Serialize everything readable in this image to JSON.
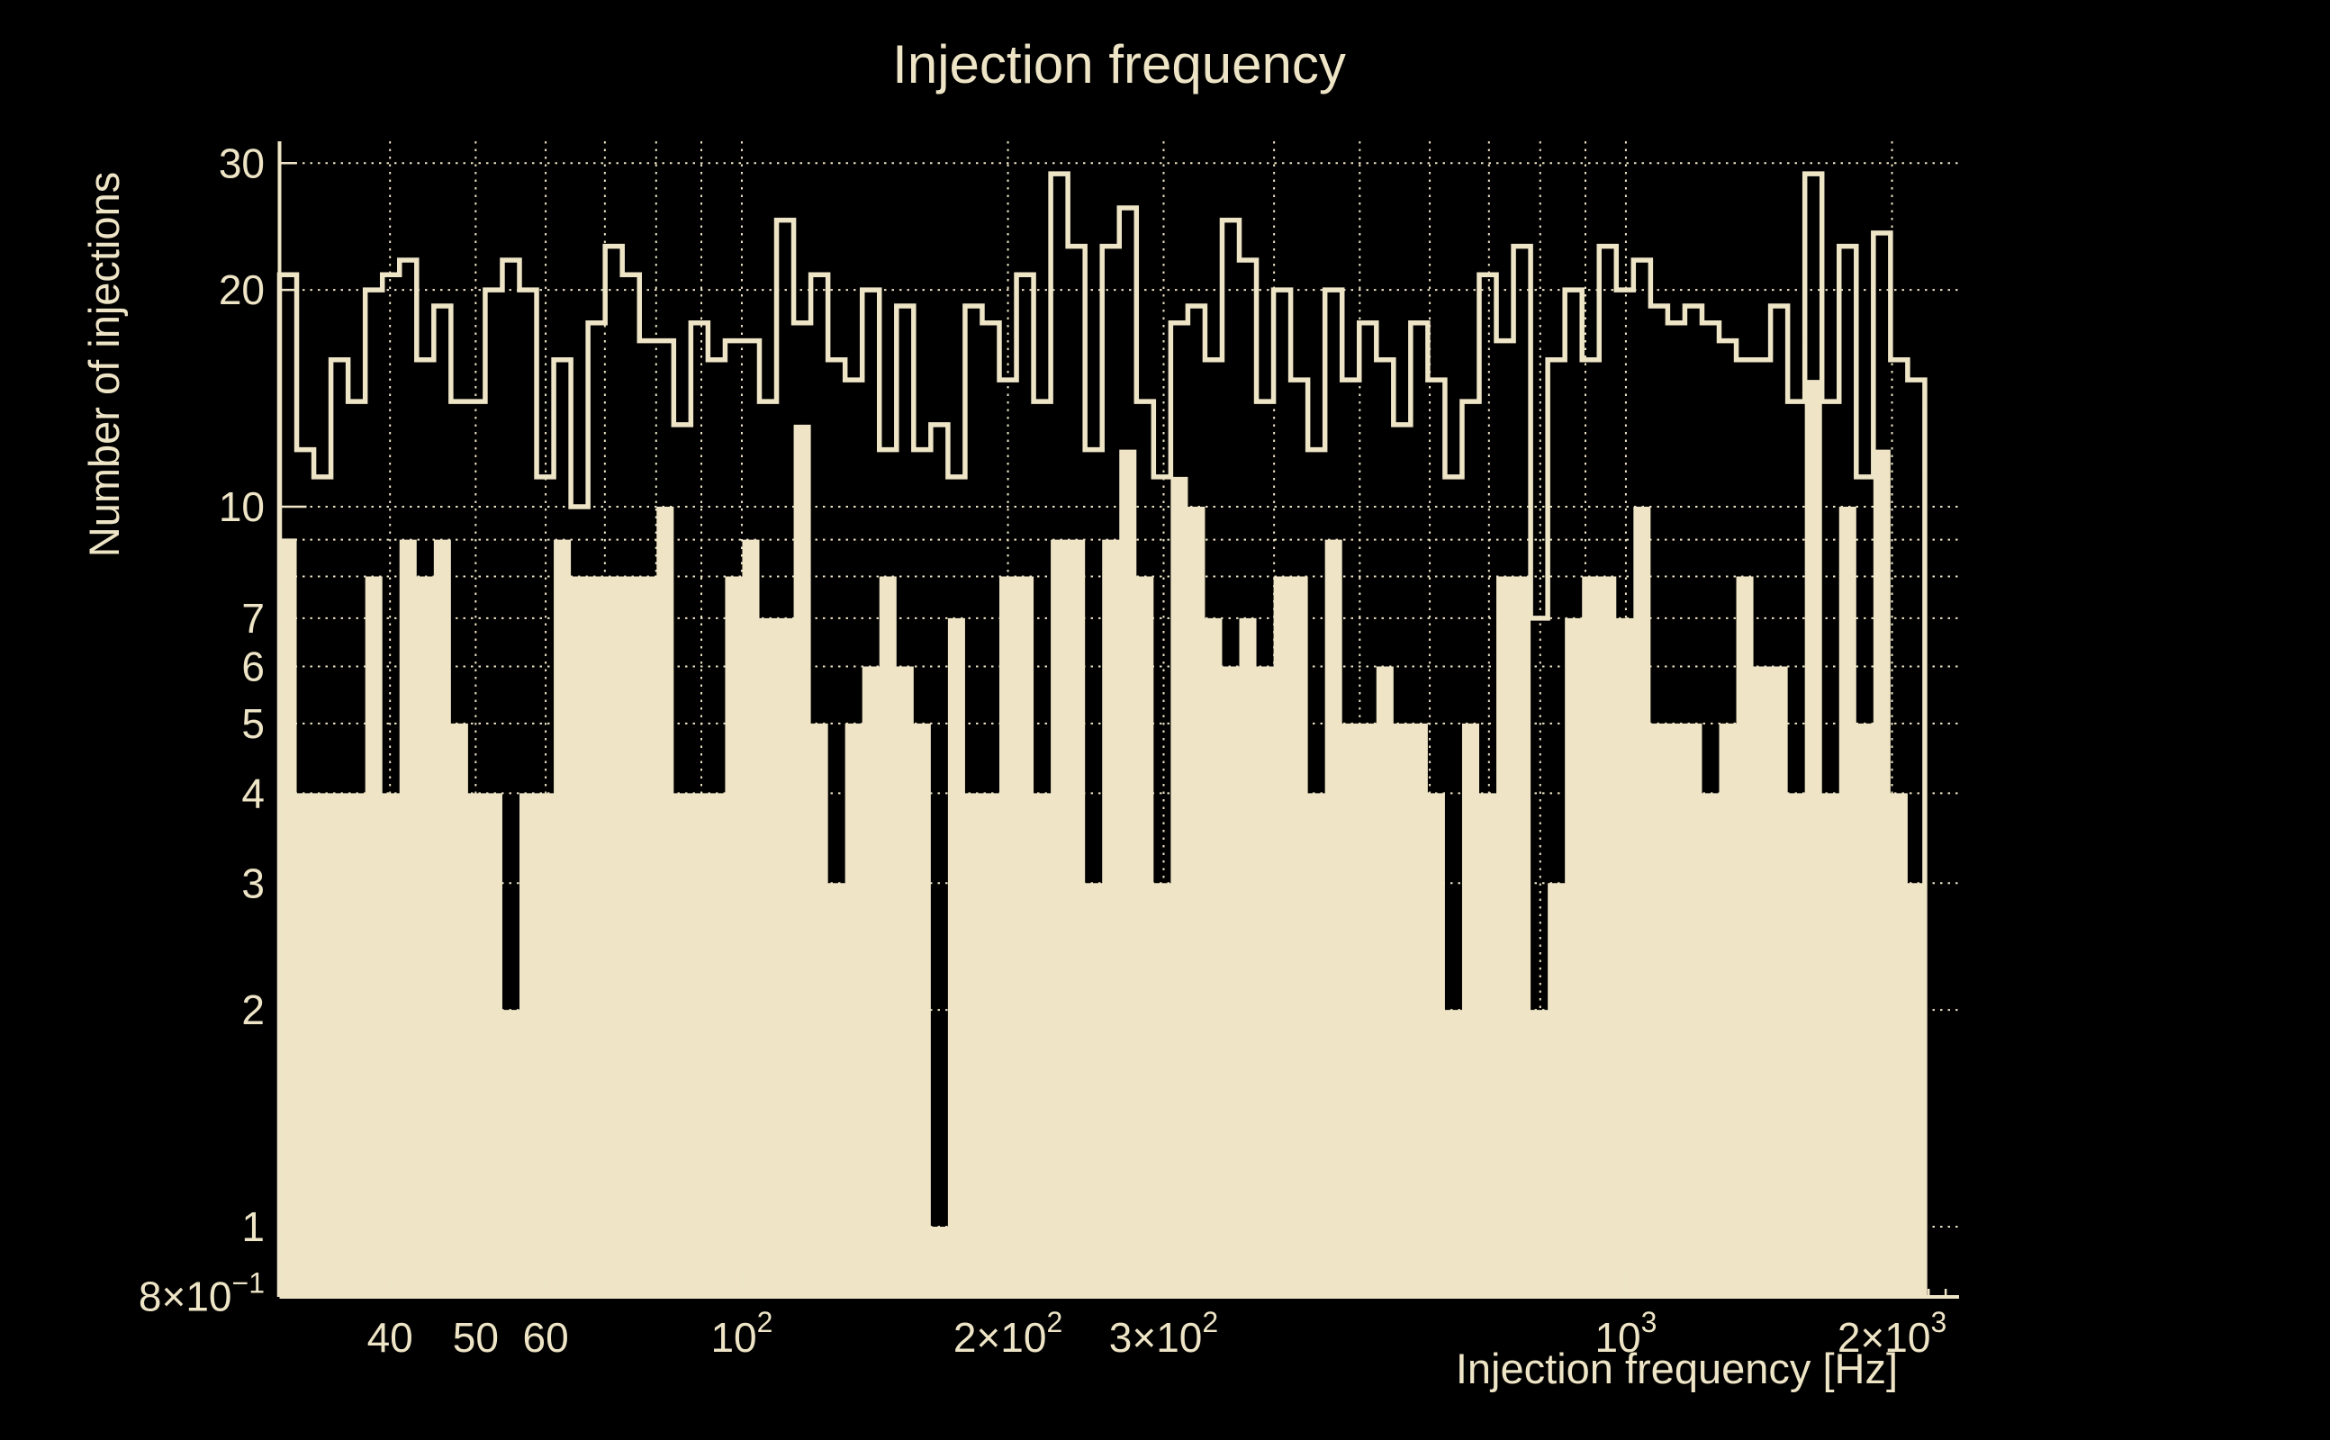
{
  "colors": {
    "background": "#000000",
    "foreground": "#EEE4C6",
    "fill": "#EFE5C6",
    "grid": "#EDE3C4"
  },
  "chart_data": {
    "type": "bar",
    "subtype": "log-log step histograms (ROOT style)",
    "title": "Injection frequency",
    "xlabel": "Injection frequency [Hz]",
    "ylabel": "Number of injections",
    "x_unit": "Hz",
    "xlim": [
      30,
      2381.6
    ],
    "ylim": [
      0.8,
      32.1
    ],
    "n_bins": 98,
    "bin_edges_rule": "log-uniform from 30 Hz, 98 bins up to 2381.6 Hz (last 2 bins empty)",
    "legend_position": "none",
    "grid": "dotted, on",
    "series": [
      {
        "name": "outline-histogram",
        "style": "unfilled step outline",
        "values": [
          21,
          12,
          11,
          16,
          14,
          20,
          21,
          22,
          16,
          19,
          14,
          14,
          20,
          22,
          20,
          11,
          16,
          10,
          18,
          23,
          21,
          17,
          17,
          13,
          18,
          16,
          17,
          17,
          14,
          25,
          18,
          21,
          16,
          15,
          20,
          12,
          19,
          12,
          13,
          11,
          19,
          18,
          15,
          21,
          14,
          29,
          23,
          12,
          23,
          26,
          14,
          11,
          18,
          19,
          16,
          25,
          22,
          14,
          20,
          15,
          12,
          20,
          15,
          18,
          16,
          13,
          18,
          15,
          11,
          14,
          21,
          17,
          23,
          7,
          16,
          20,
          16,
          23,
          20,
          22,
          19,
          18,
          19,
          18,
          17,
          16,
          16,
          19,
          14,
          29,
          14,
          23,
          11,
          24,
          16,
          15,
          0,
          0
        ]
      },
      {
        "name": "filled-histogram",
        "style": "solid filled steps",
        "values": [
          9,
          4,
          4,
          4,
          4,
          8,
          4,
          9,
          8,
          9,
          5,
          4,
          4,
          2,
          4,
          4,
          9,
          8,
          8,
          8,
          8,
          8,
          10,
          4,
          4,
          4,
          8,
          9,
          7,
          7,
          13,
          5,
          3,
          5,
          6,
          8,
          6,
          5,
          1,
          7,
          4,
          4,
          8,
          8,
          4,
          9,
          9,
          3,
          9,
          12,
          8,
          3,
          11,
          10,
          7,
          6,
          7,
          6,
          8,
          8,
          4,
          9,
          5,
          5,
          6,
          5,
          5,
          4,
          2,
          5,
          4,
          8,
          8,
          2,
          3,
          7,
          8,
          8,
          7,
          10,
          5,
          5,
          5,
          4,
          5,
          8,
          6,
          6,
          4,
          15,
          4,
          10,
          5,
          12,
          4,
          3,
          0,
          0
        ]
      }
    ],
    "x_grid_values": [
      40,
      50,
      60,
      70,
      80,
      90,
      100,
      200,
      300,
      400,
      500,
      600,
      700,
      800,
      900,
      1000,
      2000
    ],
    "y_grid_values": [
      1,
      2,
      3,
      4,
      5,
      6,
      7,
      8,
      9,
      10,
      20,
      30
    ],
    "x_tick_labels": [
      {
        "value": 40,
        "base": "40",
        "sup": ""
      },
      {
        "value": 50,
        "base": "50",
        "sup": ""
      },
      {
        "value": 60,
        "base": "60",
        "sup": ""
      },
      {
        "value": 100,
        "base": "10",
        "sup": "2"
      },
      {
        "value": 200,
        "base": "2×10",
        "sup": "2"
      },
      {
        "value": 300,
        "base": "3×10",
        "sup": "2"
      },
      {
        "value": 1000,
        "base": "10",
        "sup": "3"
      },
      {
        "value": 2000,
        "base": "2×10",
        "sup": "3"
      }
    ],
    "y_tick_labels": [
      {
        "value": 30,
        "base": "30",
        "sup": ""
      },
      {
        "value": 20,
        "base": "20",
        "sup": ""
      },
      {
        "value": 10,
        "base": "10",
        "sup": ""
      },
      {
        "value": 7,
        "base": "7",
        "sup": ""
      },
      {
        "value": 6,
        "base": "6",
        "sup": ""
      },
      {
        "value": 5,
        "base": "5",
        "sup": ""
      },
      {
        "value": 4,
        "base": "4",
        "sup": ""
      },
      {
        "value": 3,
        "base": "3",
        "sup": ""
      },
      {
        "value": 2,
        "base": "2",
        "sup": ""
      },
      {
        "value": 1,
        "base": "1",
        "sup": ""
      },
      {
        "value": 0.8,
        "base": "8×10",
        "sup": "−1"
      }
    ]
  }
}
